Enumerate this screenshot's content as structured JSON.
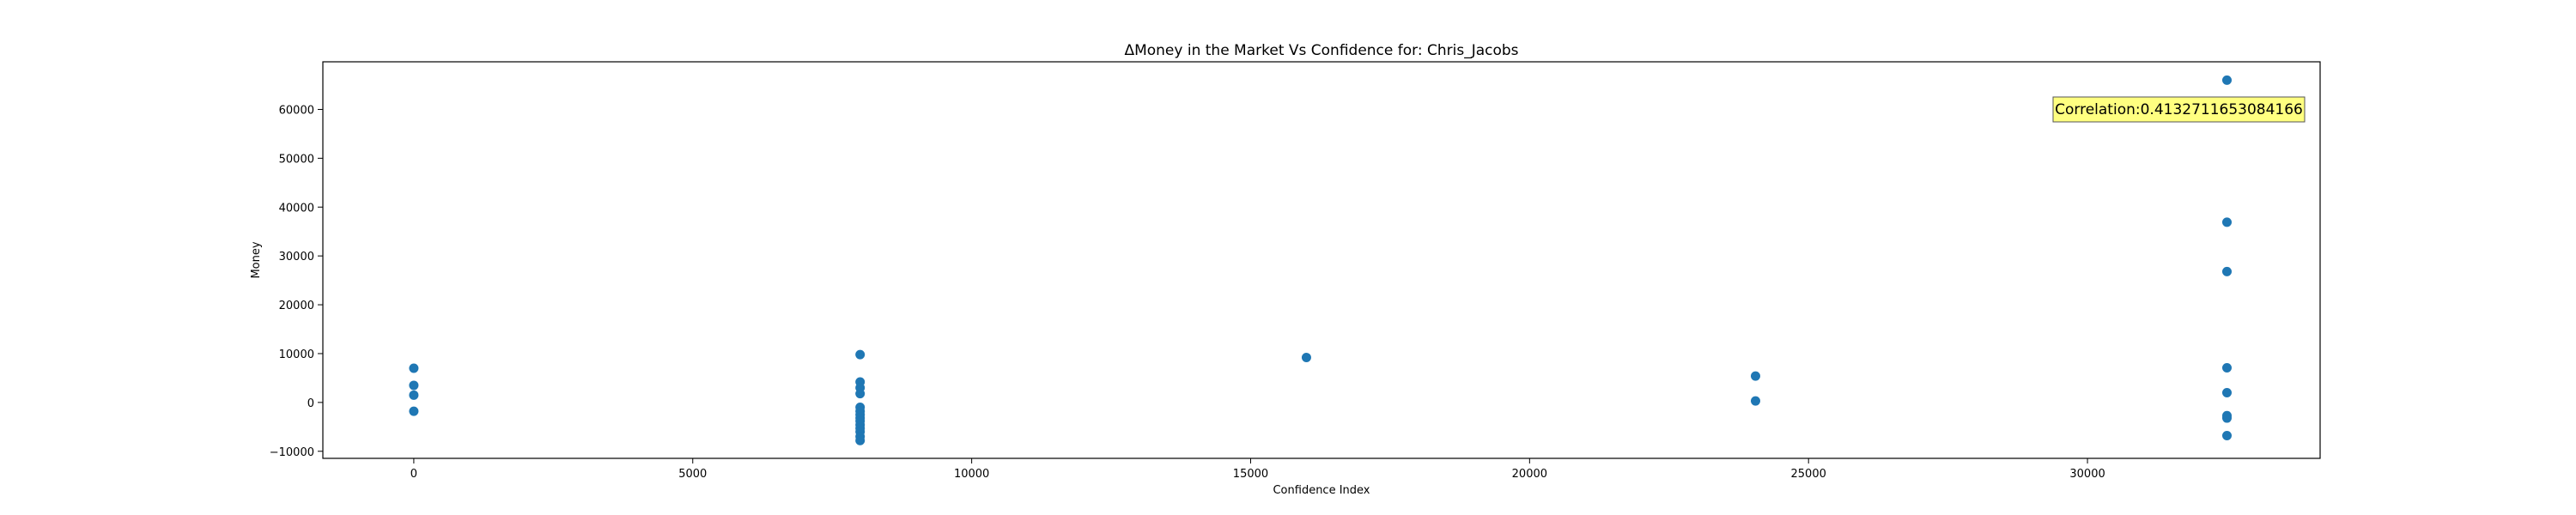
{
  "chart_data": {
    "type": "scatter",
    "title": "ΔMoney in the Market Vs Confidence for: Chris_Jacobs",
    "xlabel": "Confidence Index",
    "ylabel": "Money",
    "xlim": [
      -1630,
      34170
    ],
    "ylim": [
      -11450,
      69750
    ],
    "xticks": [
      0,
      5000,
      10000,
      15000,
      20000,
      25000,
      30000
    ],
    "yticks": [
      -10000,
      0,
      10000,
      20000,
      30000,
      40000,
      50000,
      60000
    ],
    "marker_color": "#1f77b4",
    "annotation": {
      "text": "Correlation:0.4132711653084166",
      "position": "top-right",
      "facecolor": "#ffff80"
    },
    "points": [
      {
        "x": 0,
        "y": 7000
      },
      {
        "x": 0,
        "y": 3500
      },
      {
        "x": 0,
        "y": 1500
      },
      {
        "x": 0,
        "y": -1800
      },
      {
        "x": 8000,
        "y": 9800
      },
      {
        "x": 8000,
        "y": 4200
      },
      {
        "x": 8000,
        "y": 3000
      },
      {
        "x": 8000,
        "y": 1800
      },
      {
        "x": 8000,
        "y": -1000
      },
      {
        "x": 8000,
        "y": -1800
      },
      {
        "x": 8000,
        "y": -2500
      },
      {
        "x": 8000,
        "y": -3200
      },
      {
        "x": 8000,
        "y": -3800
      },
      {
        "x": 8000,
        "y": -4600
      },
      {
        "x": 8000,
        "y": -5300
      },
      {
        "x": 8000,
        "y": -6000
      },
      {
        "x": 8000,
        "y": -7000
      },
      {
        "x": 8000,
        "y": -7800
      },
      {
        "x": 16000,
        "y": 9200
      },
      {
        "x": 24050,
        "y": 5400
      },
      {
        "x": 24050,
        "y": 300
      },
      {
        "x": 32500,
        "y": 66000
      },
      {
        "x": 32500,
        "y": 36900
      },
      {
        "x": 32500,
        "y": 26800
      },
      {
        "x": 32500,
        "y": 7100
      },
      {
        "x": 32500,
        "y": 2000
      },
      {
        "x": 32500,
        "y": -2700
      },
      {
        "x": 32500,
        "y": -3200
      },
      {
        "x": 32500,
        "y": -6800
      }
    ]
  }
}
